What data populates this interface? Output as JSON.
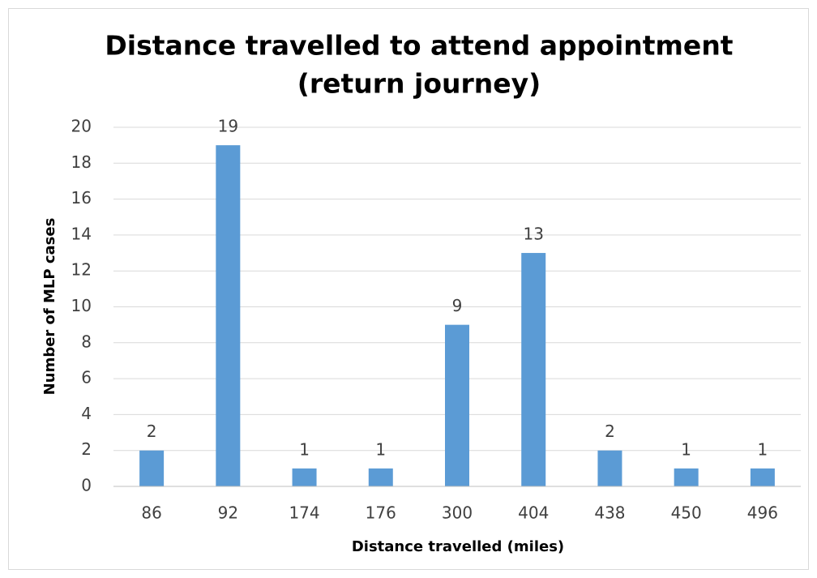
{
  "chart_data": {
    "type": "bar",
    "title": [
      "Distance travelled to attend appointment",
      "(return journey)"
    ],
    "x_label": "Distance travelled (miles)",
    "y_label": "Number of MLP cases",
    "categories": [
      "86",
      "92",
      "174",
      "176",
      "300",
      "404",
      "438",
      "450",
      "496"
    ],
    "values": [
      2,
      19,
      1,
      1,
      9,
      13,
      2,
      1,
      1
    ],
    "color": "#5b9bd5",
    "ylim": [
      0,
      20
    ],
    "yticks": [
      0,
      2,
      4,
      6,
      8,
      10,
      12,
      14,
      16,
      18,
      20
    ],
    "grid": true,
    "data_labels": true
  }
}
